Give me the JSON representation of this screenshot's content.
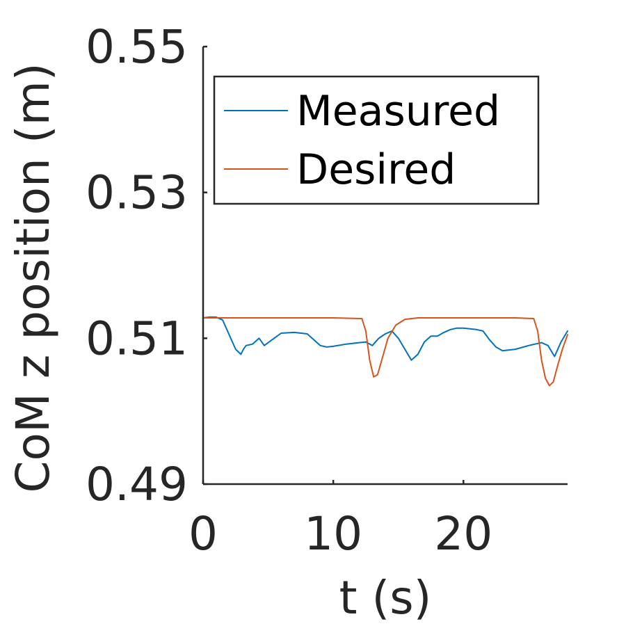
{
  "chart_data": {
    "type": "line",
    "xlabel": "t (s)",
    "ylabel": "CoM z position (m)",
    "xlim": [
      0,
      28
    ],
    "ylim": [
      0.49,
      0.55
    ],
    "xticks": [
      0,
      10,
      20
    ],
    "xtick_labels": [
      "0",
      "10",
      "20"
    ],
    "yticks": [
      0.49,
      0.51,
      0.53,
      0.55
    ],
    "ytick_labels": [
      "0.49",
      "0.51",
      "0.53",
      "0.55"
    ],
    "grid": false,
    "legend": "top-left",
    "series": [
      {
        "name": "Measured",
        "color": "#0072BD",
        "x": [
          0,
          0.5,
          1.0,
          1.5,
          2.0,
          2.5,
          2.9,
          3.1,
          3.3,
          3.8,
          4.3,
          4.7,
          5.3,
          6.0,
          7.0,
          8.0,
          8.5,
          9.0,
          9.5,
          10.0,
          11.0,
          12.0,
          12.5,
          13.0,
          13.5,
          14.0,
          14.5,
          15.0,
          15.5,
          16.0,
          16.5,
          17.0,
          17.5,
          18.0,
          18.5,
          19.0,
          19.5,
          20.0,
          21.0,
          21.5,
          22.0,
          22.5,
          23.0,
          24.0,
          25.0,
          25.5,
          26.0,
          26.5,
          27.0,
          27.5,
          28.0
        ],
        "y": [
          0.5128,
          0.5129,
          0.5129,
          0.5125,
          0.5105,
          0.5085,
          0.5078,
          0.5085,
          0.509,
          0.5092,
          0.51,
          0.509,
          0.5098,
          0.5107,
          0.5108,
          0.5106,
          0.5098,
          0.509,
          0.5088,
          0.5089,
          0.5092,
          0.5094,
          0.5095,
          0.509,
          0.51,
          0.5106,
          0.511,
          0.51,
          0.5085,
          0.507,
          0.5078,
          0.5095,
          0.5103,
          0.5103,
          0.5108,
          0.5112,
          0.5114,
          0.5114,
          0.5112,
          0.511,
          0.5098,
          0.5088,
          0.5083,
          0.5085,
          0.509,
          0.5092,
          0.5094,
          0.509,
          0.5075,
          0.5095,
          0.511
        ]
      },
      {
        "name": "Desired",
        "color": "#D95319",
        "x": [
          0,
          5,
          10,
          12.2,
          12.5,
          12.8,
          13.1,
          13.4,
          13.8,
          14.2,
          14.8,
          15.5,
          16.5,
          18,
          20,
          24,
          25.4,
          25.7,
          26.0,
          26.3,
          26.6,
          26.9,
          27.2,
          27.6,
          28.0
        ],
        "y": [
          0.5128,
          0.5128,
          0.5128,
          0.5127,
          0.511,
          0.507,
          0.5047,
          0.505,
          0.5075,
          0.51,
          0.5118,
          0.5126,
          0.5128,
          0.5128,
          0.5128,
          0.5128,
          0.5127,
          0.511,
          0.507,
          0.5045,
          0.5035,
          0.504,
          0.506,
          0.5085,
          0.5105
        ]
      }
    ]
  }
}
